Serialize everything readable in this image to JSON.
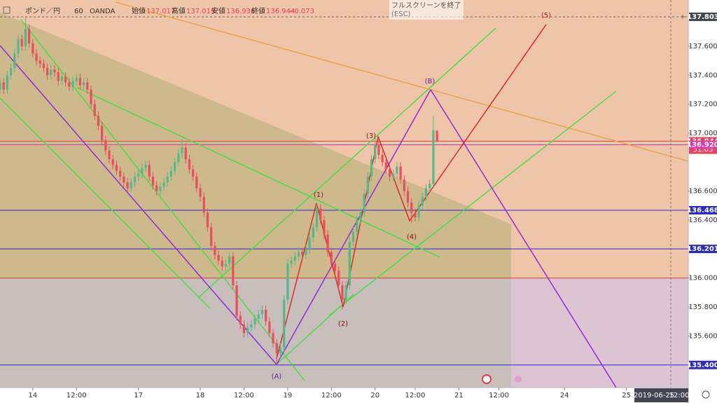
{
  "chart_data": {
    "type": "candlestick",
    "header": {
      "symbol": "ポンド／円",
      "interval": "60",
      "source": "OANDA",
      "ohlc": [
        {
          "name": "始値",
          "value": 137.017
        },
        {
          "name": "高値",
          "value": 137.019
        },
        {
          "name": "安値",
          "value": 136.936
        },
        {
          "name": "終値",
          "value": 136.944
        }
      ],
      "change": {
        "value": -0.073,
        "label": "−0.073"
      }
    },
    "exit_button": {
      "text": "フルスクリーンを終了",
      "hint": "(ESC)"
    },
    "up_color": "#53b987",
    "down_color": "#eb4d5c",
    "xlim": [
      0,
      189
    ],
    "ylim": [
      135.244,
      137.919
    ],
    "xticks": [
      {
        "value": 9,
        "label": "14"
      },
      {
        "value": 21,
        "label": "12:00"
      },
      {
        "value": 38,
        "label": "17"
      },
      {
        "value": 55,
        "label": "18"
      },
      {
        "value": 67,
        "label": "12:00"
      },
      {
        "value": 79,
        "label": "19"
      },
      {
        "value": 91,
        "label": "12:00"
      },
      {
        "value": 103,
        "label": "20"
      },
      {
        "value": 114,
        "label": "12:00"
      },
      {
        "value": 126,
        "label": "21"
      },
      {
        "value": 137,
        "label": "12:00"
      },
      {
        "value": 155,
        "label": "24"
      },
      {
        "value": 172,
        "label": "25"
      }
    ],
    "yticks": [
      {
        "value": 135.6,
        "label": "135.600"
      },
      {
        "value": 135.8,
        "label": "135.800"
      },
      {
        "value": 136.0,
        "label": "136.000"
      },
      {
        "value": 136.4,
        "label": "136.400"
      },
      {
        "value": 136.6,
        "label": "136.600"
      },
      {
        "value": 137.0,
        "label": "137.000"
      },
      {
        "value": 137.2,
        "label": "137.200"
      },
      {
        "value": 137.4,
        "label": "137.400"
      },
      {
        "value": 137.6,
        "label": "137.600"
      }
    ],
    "candles": [
      [
        137.3,
        137.38,
        137.27,
        137.35
      ],
      [
        137.35,
        137.38,
        137.27,
        137.3
      ],
      [
        137.3,
        137.43,
        137.27,
        137.4
      ],
      [
        137.4,
        137.48,
        137.37,
        137.45
      ],
      [
        137.45,
        137.58,
        137.42,
        137.55
      ],
      [
        137.55,
        137.68,
        137.52,
        137.65
      ],
      [
        137.65,
        137.68,
        137.57,
        137.6
      ],
      [
        137.6,
        137.8,
        137.57,
        137.72
      ],
      [
        137.72,
        137.75,
        137.59,
        137.62
      ],
      [
        137.62,
        137.65,
        137.52,
        137.55
      ],
      [
        137.55,
        137.58,
        137.47,
        137.5
      ],
      [
        137.5,
        137.53,
        137.45,
        137.48
      ],
      [
        137.48,
        137.51,
        137.42,
        137.45
      ],
      [
        137.45,
        137.48,
        137.37,
        137.4
      ],
      [
        137.4,
        137.47,
        137.37,
        137.44
      ],
      [
        137.44,
        137.47,
        137.39,
        137.42
      ],
      [
        137.42,
        137.45,
        137.33,
        137.36
      ],
      [
        137.36,
        137.42,
        137.33,
        137.39
      ],
      [
        137.39,
        137.42,
        137.32,
        137.35
      ],
      [
        137.35,
        137.38,
        137.29,
        137.32
      ],
      [
        137.32,
        137.39,
        137.29,
        137.36
      ],
      [
        137.36,
        137.41,
        137.33,
        137.38
      ],
      [
        137.38,
        137.41,
        137.3,
        137.33
      ],
      [
        137.33,
        137.38,
        137.3,
        137.35
      ],
      [
        137.35,
        137.38,
        137.27,
        137.3
      ],
      [
        137.3,
        137.33,
        137.17,
        137.2
      ],
      [
        137.2,
        137.23,
        137.09,
        137.12
      ],
      [
        137.12,
        137.15,
        137.02,
        137.05
      ],
      [
        137.05,
        137.08,
        136.92,
        136.95
      ],
      [
        136.95,
        136.98,
        136.85,
        136.88
      ],
      [
        136.88,
        136.91,
        136.79,
        136.82
      ],
      [
        136.82,
        136.85,
        136.75,
        136.78
      ],
      [
        136.78,
        136.81,
        136.71,
        136.74
      ],
      [
        136.74,
        136.77,
        136.67,
        136.7
      ],
      [
        136.7,
        136.73,
        136.63,
        136.66
      ],
      [
        136.66,
        136.69,
        136.59,
        136.62
      ],
      [
        136.62,
        136.69,
        136.59,
        136.66
      ],
      [
        136.66,
        136.73,
        136.63,
        136.7
      ],
      [
        136.7,
        136.75,
        136.67,
        136.72
      ],
      [
        136.72,
        136.79,
        136.69,
        136.76
      ],
      [
        136.76,
        136.81,
        136.73,
        136.78
      ],
      [
        136.78,
        136.81,
        136.67,
        136.7
      ],
      [
        136.7,
        136.73,
        136.61,
        136.64
      ],
      [
        136.64,
        136.67,
        136.57,
        136.6
      ],
      [
        136.6,
        136.66,
        136.57,
        136.63
      ],
      [
        136.63,
        136.69,
        136.6,
        136.66
      ],
      [
        136.66,
        136.73,
        136.63,
        136.7
      ],
      [
        136.7,
        136.77,
        136.67,
        136.74
      ],
      [
        136.74,
        136.83,
        136.71,
        136.8
      ],
      [
        136.8,
        136.89,
        136.77,
        136.86
      ],
      [
        136.86,
        136.96,
        136.83,
        136.9
      ],
      [
        136.9,
        136.93,
        136.79,
        136.82
      ],
      [
        136.82,
        136.85,
        136.72,
        136.75
      ],
      [
        136.75,
        136.78,
        136.67,
        136.7
      ],
      [
        136.7,
        136.73,
        136.59,
        136.62
      ],
      [
        136.62,
        136.65,
        136.53,
        136.56
      ],
      [
        136.56,
        136.59,
        136.42,
        136.45
      ],
      [
        136.45,
        136.48,
        136.32,
        136.35
      ],
      [
        136.35,
        136.38,
        136.19,
        136.22
      ],
      [
        136.22,
        136.25,
        136.13,
        136.16
      ],
      [
        136.16,
        136.19,
        136.09,
        136.12
      ],
      [
        136.12,
        136.15,
        136.05,
        136.08
      ],
      [
        136.08,
        136.13,
        136.05,
        136.1
      ],
      [
        136.1,
        136.18,
        136.07,
        136.15
      ],
      [
        136.15,
        136.18,
        135.92,
        135.95
      ],
      [
        135.95,
        135.98,
        135.71,
        135.74
      ],
      [
        135.74,
        135.77,
        135.65,
        135.68
      ],
      [
        135.68,
        135.71,
        135.59,
        135.62
      ],
      [
        135.62,
        135.69,
        135.59,
        135.66
      ],
      [
        135.66,
        135.71,
        135.63,
        135.68
      ],
      [
        135.68,
        135.75,
        135.65,
        135.72
      ],
      [
        135.72,
        135.78,
        135.69,
        135.75
      ],
      [
        135.75,
        135.81,
        135.72,
        135.78
      ],
      [
        135.78,
        135.81,
        135.67,
        135.7
      ],
      [
        135.7,
        135.73,
        135.59,
        135.62
      ],
      [
        135.62,
        135.65,
        135.52,
        135.55
      ],
      [
        135.55,
        135.58,
        135.4,
        135.48
      ],
      [
        135.48,
        135.55,
        135.45,
        135.52
      ],
      [
        135.52,
        135.88,
        135.49,
        135.85
      ],
      [
        135.85,
        136.13,
        135.82,
        136.1
      ],
      [
        136.1,
        136.15,
        136.07,
        136.12
      ],
      [
        136.12,
        136.18,
        136.09,
        136.15
      ],
      [
        136.15,
        136.21,
        136.12,
        136.18
      ],
      [
        136.18,
        136.21,
        136.13,
        136.16
      ],
      [
        136.16,
        136.23,
        136.13,
        136.2
      ],
      [
        136.2,
        136.31,
        136.17,
        136.28
      ],
      [
        136.28,
        136.38,
        136.25,
        136.35
      ],
      [
        136.35,
        136.51,
        136.32,
        136.48
      ],
      [
        136.48,
        136.51,
        136.37,
        136.4
      ],
      [
        136.4,
        136.43,
        136.27,
        136.3
      ],
      [
        136.3,
        136.33,
        136.15,
        136.18
      ],
      [
        136.18,
        136.21,
        136.07,
        136.1
      ],
      [
        136.1,
        136.13,
        136.02,
        136.05
      ],
      [
        136.05,
        136.08,
        135.92,
        135.95
      ],
      [
        135.95,
        135.98,
        135.78,
        135.85
      ],
      [
        135.85,
        135.98,
        135.82,
        135.95
      ],
      [
        135.95,
        136.28,
        135.92,
        136.25
      ],
      [
        136.25,
        136.35,
        136.22,
        136.32
      ],
      [
        136.32,
        136.43,
        136.29,
        136.4
      ],
      [
        136.4,
        136.48,
        136.37,
        136.45
      ],
      [
        136.45,
        136.61,
        136.42,
        136.58
      ],
      [
        136.58,
        136.73,
        136.55,
        136.7
      ],
      [
        136.7,
        136.85,
        136.67,
        136.82
      ],
      [
        136.82,
        136.97,
        136.79,
        136.92
      ],
      [
        136.92,
        136.95,
        136.82,
        136.85
      ],
      [
        136.85,
        136.88,
        136.77,
        136.8
      ],
      [
        136.8,
        136.83,
        136.72,
        136.75
      ],
      [
        136.75,
        136.78,
        136.67,
        136.7
      ],
      [
        136.7,
        136.75,
        136.67,
        136.72
      ],
      [
        136.72,
        136.8,
        136.69,
        136.77
      ],
      [
        136.77,
        136.8,
        136.65,
        136.68
      ],
      [
        136.68,
        136.71,
        136.57,
        136.6
      ],
      [
        136.6,
        136.63,
        136.49,
        136.52
      ],
      [
        136.52,
        136.55,
        136.38,
        136.45
      ],
      [
        136.45,
        136.48,
        136.39,
        136.42
      ],
      [
        136.42,
        136.53,
        136.39,
        136.5
      ],
      [
        136.5,
        136.59,
        136.47,
        136.56
      ],
      [
        136.56,
        136.65,
        136.53,
        136.62
      ],
      [
        136.62,
        136.68,
        136.59,
        136.65
      ],
      [
        136.65,
        137.12,
        136.62,
        137.02
      ],
      [
        137.017,
        137.019,
        136.936,
        136.944
      ]
    ],
    "level_line": {
      "value": 136.0,
      "color": "#d04040"
    },
    "price_lines": [
      {
        "value": 137.803,
        "color": "#434651"
      },
      {
        "value": 136.944,
        "label": "136.944",
        "color": "#e8425a",
        "timer": "51:05"
      },
      {
        "value": 136.92,
        "label": "136.920",
        "color": "#d83cb4"
      },
      {
        "value": 136.468,
        "label": "136.468",
        "color": "#2a2ac8"
      },
      {
        "value": 136.201,
        "label": "136.201",
        "color": "#2a2ac8"
      },
      {
        "value": 135.4,
        "label": "135.400",
        "color": "#2a2ac8"
      }
    ],
    "crosshair": {
      "x": 184.2,
      "date": "2019-06-25",
      "time": "12:00"
    },
    "waves": [
      {
        "label": "(1)"
      },
      {
        "label": "(2)"
      },
      {
        "label": "(3)"
      },
      {
        "label": "(4)"
      },
      {
        "label": "(5)"
      },
      {
        "label": "(A)"
      },
      {
        "label": "(B)"
      }
    ]
  }
}
